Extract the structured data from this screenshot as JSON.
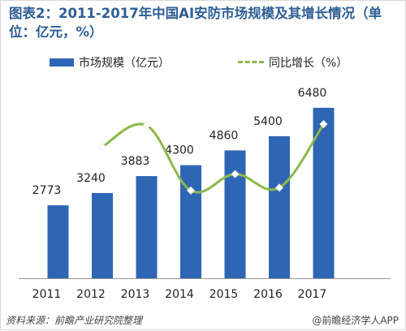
{
  "title": "图表2：2011-2017年中国AI安防市场规模及其增长情况（单位：亿元，%）",
  "legend": {
    "bar_label": "市场规模（亿元）",
    "line_label": "同比增长（%）"
  },
  "footer": {
    "source": "资料来源：前瞻产业研究院整理",
    "brand": "@前瞻经济学人APP"
  },
  "colors": {
    "title": "#2f5f95",
    "bar": "#2e66b3",
    "line": "#8db84a",
    "marker": "#ffffff"
  },
  "chart_data": {
    "type": "bar",
    "categories": [
      "2011",
      "2012",
      "2013",
      "2014",
      "2015",
      "2016",
      "2017"
    ],
    "series": [
      {
        "name": "市场规模（亿元）",
        "type": "bar",
        "values": [
          2773,
          3240,
          3883,
          4300,
          4860,
          5400,
          6480
        ]
      },
      {
        "name": "同比增长（%）",
        "type": "line",
        "values": [
          null,
          16.8,
          19.8,
          10.7,
          13.0,
          11.1,
          20.0
        ]
      }
    ],
    "ylim": [
      0,
      7000
    ],
    "grid": false,
    "legend_position": "top"
  }
}
